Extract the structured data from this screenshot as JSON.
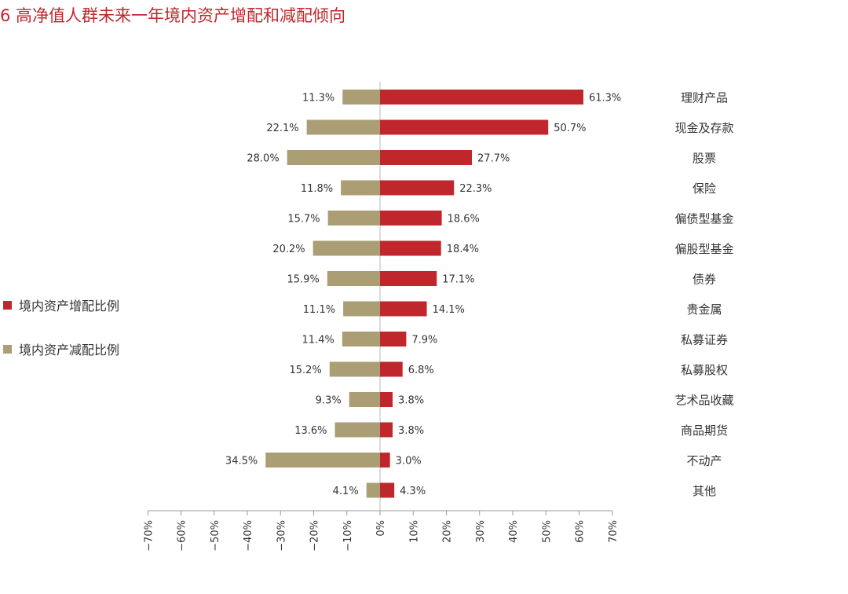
{
  "chart_data": {
    "type": "bar",
    "title": "6  高净值人群未来一年境内资产增配和减配倾向",
    "categories": [
      "理财产品",
      "现金及存款",
      "股票",
      "保险",
      "偏债型基金",
      "偏股型基金",
      "债券",
      "贵金属",
      "私募证券",
      "私募股权",
      "艺术品收藏",
      "商品期货",
      "不动产",
      "其他"
    ],
    "series": [
      {
        "name": "境内资产增配比例",
        "color": "#c0272d",
        "values": [
          61.3,
          50.7,
          27.7,
          22.3,
          18.6,
          18.4,
          17.1,
          14.1,
          7.9,
          6.8,
          3.8,
          3.8,
          3.0,
          4.3
        ],
        "labels": [
          "61.3%",
          "50.7%",
          "27.7%",
          "22.3%",
          "18.6%",
          "18.4%",
          "17.1%",
          "14.1%",
          "7.9%",
          "6.8%",
          "3.8%",
          "3.8%",
          "3.0%",
          "4.3%"
        ]
      },
      {
        "name": "境内资产减配比例",
        "color": "#ab9e74",
        "values": [
          11.3,
          22.1,
          28.0,
          11.8,
          15.7,
          20.2,
          15.9,
          11.1,
          11.4,
          15.2,
          9.3,
          13.6,
          34.5,
          4.1
        ],
        "labels": [
          "11.3%",
          "22.1%",
          "28.0%",
          "11.8%",
          "15.7%",
          "20.2%",
          "15.9%",
          "11.1%",
          "11.4%",
          "15.2%",
          "9.3%",
          "13.6%",
          "34.5%",
          "4.1%"
        ]
      }
    ],
    "xlim": [
      -70,
      70
    ],
    "xticks": [
      -70,
      -60,
      -50,
      -40,
      -30,
      -20,
      -10,
      0,
      10,
      20,
      30,
      40,
      50,
      60,
      70
    ],
    "xtick_labels": [
      "−70%",
      "−60%",
      "−50%",
      "−40%",
      "−30%",
      "−20%",
      "−10%",
      "0%",
      "10%",
      "20%",
      "30%",
      "40%",
      "50%",
      "60%",
      "70%"
    ],
    "legend_position": "left"
  }
}
